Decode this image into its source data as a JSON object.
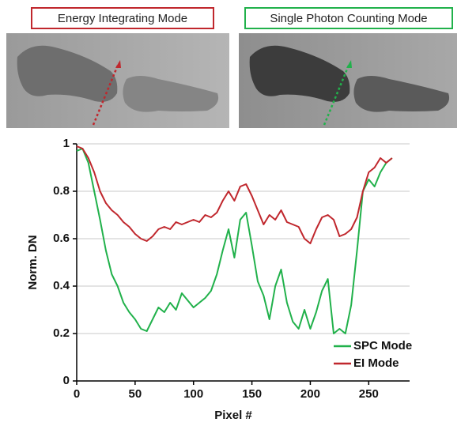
{
  "chart_data": {
    "type": "line",
    "annotations": [
      "Energy Integrating Mode",
      "Single Photon Counting Mode"
    ],
    "annotation_colors": [
      "#c0272d",
      "#21b14b"
    ],
    "xlabel": "Pixel #",
    "ylabel": "Norm. DN",
    "x": [
      0,
      5,
      10,
      15,
      20,
      25,
      30,
      35,
      40,
      45,
      50,
      55,
      60,
      65,
      70,
      75,
      80,
      85,
      90,
      95,
      100,
      105,
      110,
      115,
      120,
      125,
      130,
      135,
      140,
      145,
      150,
      155,
      160,
      165,
      170,
      175,
      180,
      185,
      190,
      195,
      200,
      205,
      210,
      215,
      220,
      225,
      230,
      235,
      240,
      245,
      250,
      255,
      260,
      265,
      270
    ],
    "series": [
      {
        "name": "SPC Mode",
        "color": "#21b14b",
        "values": [
          0.97,
          0.98,
          0.92,
          0.8,
          0.68,
          0.55,
          0.45,
          0.4,
          0.33,
          0.29,
          0.26,
          0.22,
          0.21,
          0.26,
          0.31,
          0.29,
          0.33,
          0.3,
          0.37,
          0.34,
          0.31,
          0.33,
          0.35,
          0.38,
          0.45,
          0.55,
          0.64,
          0.52,
          0.68,
          0.71,
          0.57,
          0.42,
          0.36,
          0.26,
          0.4,
          0.47,
          0.33,
          0.25,
          0.22,
          0.3,
          0.22,
          0.29,
          0.38,
          0.43,
          0.2,
          0.22,
          0.2,
          0.32,
          0.55,
          0.8,
          0.85,
          0.82,
          0.88,
          0.92,
          0.94
        ]
      },
      {
        "name": "EI Mode",
        "color": "#c0272d",
        "values": [
          0.99,
          0.98,
          0.94,
          0.88,
          0.8,
          0.75,
          0.72,
          0.7,
          0.67,
          0.65,
          0.62,
          0.6,
          0.59,
          0.61,
          0.64,
          0.65,
          0.64,
          0.67,
          0.66,
          0.67,
          0.68,
          0.67,
          0.7,
          0.69,
          0.71,
          0.76,
          0.8,
          0.76,
          0.82,
          0.83,
          0.78,
          0.72,
          0.66,
          0.7,
          0.68,
          0.72,
          0.67,
          0.66,
          0.65,
          0.6,
          0.58,
          0.64,
          0.69,
          0.7,
          0.68,
          0.61,
          0.62,
          0.64,
          0.69,
          0.8,
          0.88,
          0.9,
          0.94,
          0.92,
          0.94
        ]
      }
    ],
    "xlim": [
      0,
      285
    ],
    "ylim": [
      0,
      1
    ],
    "xticks": [
      0,
      50,
      100,
      150,
      200,
      250
    ],
    "yticks": [
      0,
      0.2,
      0.4,
      0.6,
      0.8,
      1
    ],
    "grid": true,
    "legend": "lower right"
  }
}
